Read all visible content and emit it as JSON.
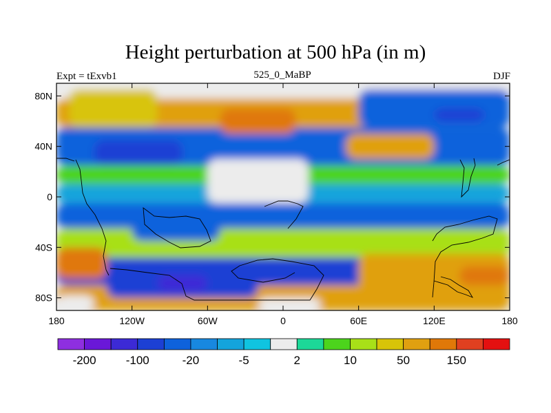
{
  "chart_data": {
    "type": "heatmap",
    "title": "Height perturbation at 500 hPa (in m)",
    "subtitle_left": "Expt = tExvb1",
    "subtitle_center": "525_0_MaBP",
    "subtitle_right": "DJF",
    "xlim": [
      -180,
      180
    ],
    "ylim": [
      -90,
      90
    ],
    "x_ticks": [
      {
        "value": -180,
        "label": "180"
      },
      {
        "value": -120,
        "label": "120W"
      },
      {
        "value": -60,
        "label": "60W"
      },
      {
        "value": 0,
        "label": "0"
      },
      {
        "value": 60,
        "label": "60E"
      },
      {
        "value": 120,
        "label": "120E"
      },
      {
        "value": 180,
        "label": "180"
      }
    ],
    "y_ticks": [
      {
        "value": 80,
        "label": "80N"
      },
      {
        "value": 40,
        "label": "40N"
      },
      {
        "value": 0,
        "label": "0"
      },
      {
        "value": -40,
        "label": "40S"
      },
      {
        "value": -80,
        "label": "80S"
      }
    ],
    "colorbar_colors": [
      "#8e2fe0",
      "#6a18d8",
      "#3c2ad6",
      "#1c40d4",
      "#0e62dc",
      "#1888e0",
      "#14a4dc",
      "#10c4e0",
      "#ececec",
      "#1cd898",
      "#4cd41c",
      "#a8e018",
      "#d8c408",
      "#e0a010",
      "#e07808",
      "#e04020",
      "#e41010"
    ],
    "colorbar_labels": [
      {
        "boundary": 1,
        "label": "-200"
      },
      {
        "boundary": 3,
        "label": "-100"
      },
      {
        "boundary": 5,
        "label": "-20"
      },
      {
        "boundary": 7,
        "label": "-5"
      },
      {
        "boundary": 9,
        "label": "2"
      },
      {
        "boundary": 11,
        "label": "10"
      },
      {
        "boundary": 13,
        "label": "50"
      },
      {
        "boundary": 15,
        "label": "150"
      }
    ],
    "field_regions": [
      {
        "name": "band-south-polar",
        "lon": [
          -180,
          180
        ],
        "lat": [
          -90,
          -70
        ],
        "level": 13
      },
      {
        "name": "band-south-mid",
        "lon": [
          -180,
          180
        ],
        "lat": [
          -70,
          -48
        ],
        "level": 3
      },
      {
        "name": "band-south-sub",
        "lon": [
          -180,
          180
        ],
        "lat": [
          -48,
          -25
        ],
        "level": 11
      },
      {
        "name": "band-south-tropic",
        "lon": [
          -180,
          180
        ],
        "lat": [
          -25,
          -5
        ],
        "level": 4
      },
      {
        "name": "band-equator",
        "lon": [
          -180,
          180
        ],
        "lat": [
          -5,
          10
        ],
        "level": 6
      },
      {
        "name": "band-north-tropic",
        "lon": [
          -180,
          180
        ],
        "lat": [
          10,
          25
        ],
        "level": 10
      },
      {
        "name": "band-north-mid",
        "lon": [
          -180,
          180
        ],
        "lat": [
          25,
          55
        ],
        "level": 4
      },
      {
        "name": "band-north-high",
        "lon": [
          -180,
          180
        ],
        "lat": [
          55,
          78
        ],
        "level": 13
      },
      {
        "name": "band-north-polar",
        "lon": [
          -180,
          180
        ],
        "lat": [
          78,
          90
        ],
        "level": 8
      },
      {
        "name": "high-north-pacific",
        "lon": [
          -170,
          -100
        ],
        "lat": [
          55,
          85
        ],
        "level": 12
      },
      {
        "name": "high-north-atlantic",
        "lon": [
          -50,
          10
        ],
        "lat": [
          50,
          70
        ],
        "level": 14
      },
      {
        "name": "high-north-eurasia",
        "lon": [
          50,
          120
        ],
        "lat": [
          30,
          50
        ],
        "level": 13
      },
      {
        "name": "low-north-pacific",
        "lon": [
          -150,
          -80
        ],
        "lat": [
          25,
          45
        ],
        "level": 3
      },
      {
        "name": "low-siberia",
        "lon": [
          60,
          180
        ],
        "lat": [
          55,
          85
        ],
        "level": 4
      },
      {
        "name": "low-siberia-core",
        "lon": [
          120,
          160
        ],
        "lat": [
          60,
          70
        ],
        "level": 3
      },
      {
        "name": "neutral-tropics-atlantic",
        "lon": [
          -60,
          20
        ],
        "lat": [
          -5,
          30
        ],
        "level": 8
      },
      {
        "name": "low-south-atlantic",
        "lon": [
          -120,
          -50
        ],
        "lat": [
          -35,
          -10
        ],
        "level": 4
      },
      {
        "name": "high-south-indian",
        "lon": [
          -180,
          -140
        ],
        "lat": [
          -65,
          -40
        ],
        "level": 14
      },
      {
        "name": "low-south-pacific",
        "lon": [
          -140,
          -20
        ],
        "lat": [
          -80,
          -55
        ],
        "level": 3
      },
      {
        "name": "low-south-core",
        "lon": [
          -100,
          -60
        ],
        "lat": [
          -75,
          -62
        ],
        "level": 2
      },
      {
        "name": "high-south-east",
        "lon": [
          60,
          180
        ],
        "lat": [
          -85,
          -45
        ],
        "level": 13
      },
      {
        "name": "high-south-east-core",
        "lon": [
          140,
          180
        ],
        "lat": [
          -70,
          -55
        ],
        "level": 14
      },
      {
        "name": "neutral-antarctic-west",
        "lon": [
          -180,
          -150
        ],
        "lat": [
          -90,
          -78
        ],
        "level": 8
      },
      {
        "name": "neutral-antarctic-east",
        "lon": [
          -20,
          30
        ],
        "lat": [
          -90,
          -80
        ],
        "level": 8
      }
    ]
  }
}
